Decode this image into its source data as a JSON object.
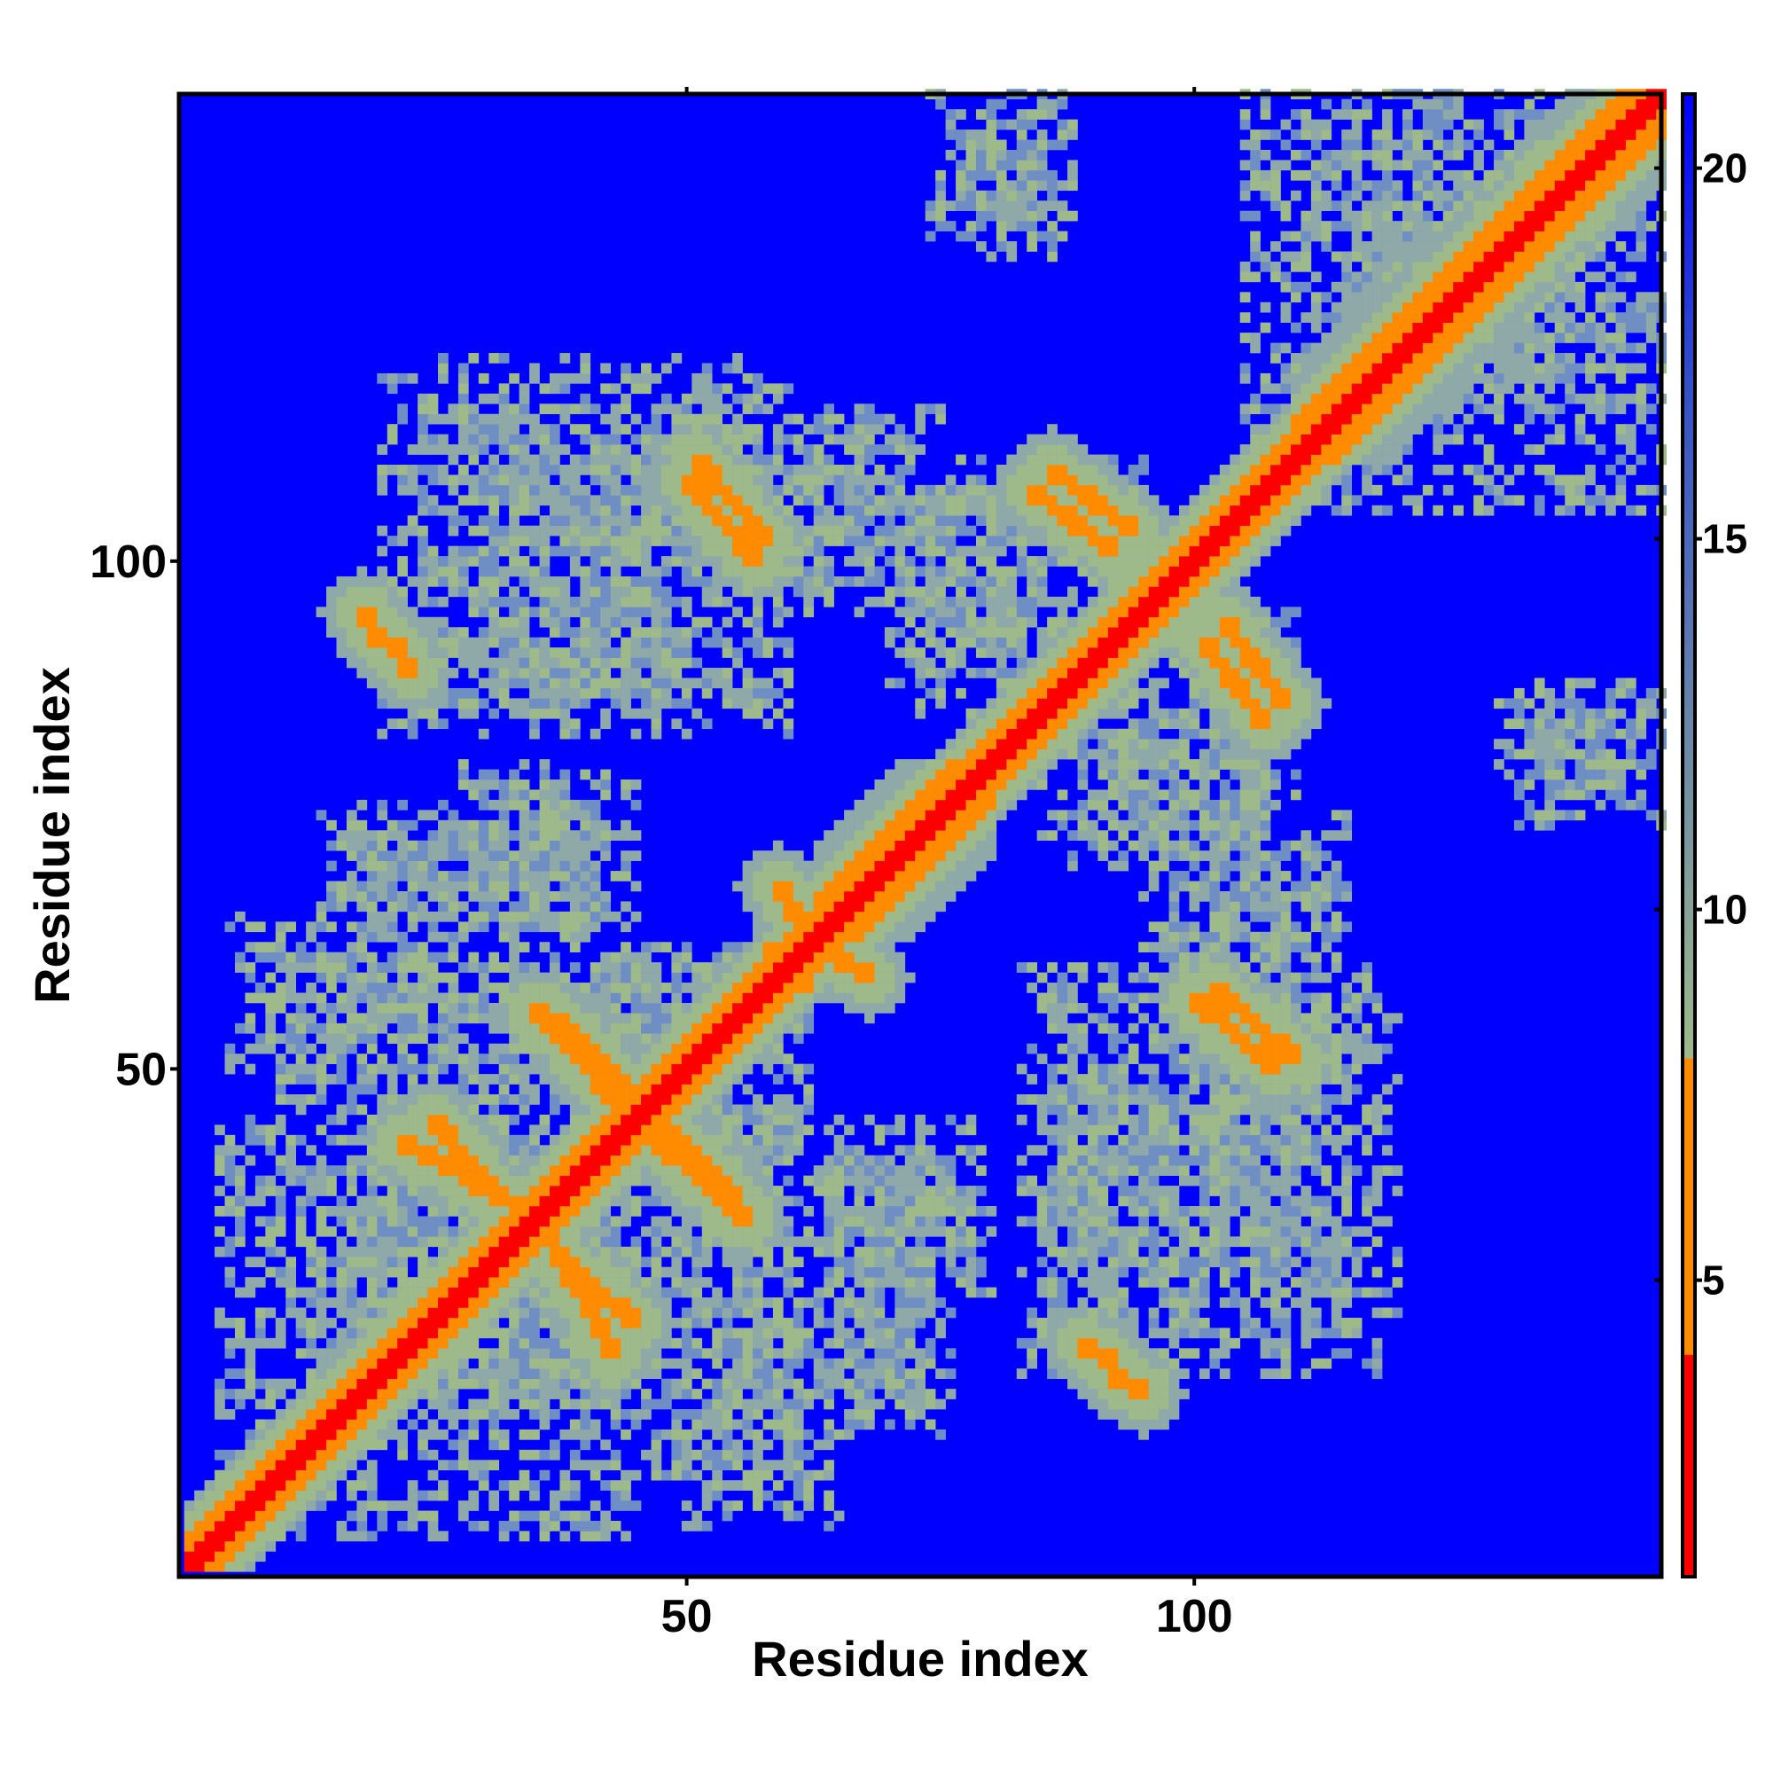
{
  "chart_data": {
    "type": "heatmap",
    "title": "",
    "xlabel": "Residue index",
    "ylabel": "Residue index",
    "n_residues": 146,
    "xlim": [
      1,
      146
    ],
    "ylim": [
      1,
      146
    ],
    "x_ticks": [
      50,
      100
    ],
    "y_ticks": [
      50,
      100
    ],
    "colorbar": {
      "range": [
        1,
        21
      ],
      "ticks": [
        5,
        10,
        15,
        20
      ],
      "cutoff": 8,
      "low_colors": [
        "#ff0000",
        "#ff8c00"
      ],
      "high_colors": [
        "#9eb98a",
        "#7f9ebf",
        "#4f6fb8",
        "#0000ff"
      ],
      "background_color": "#0000ff"
    },
    "diagonal_band": {
      "start": 1,
      "end": 146,
      "core_distance": 2.5,
      "orange_width": 4
    },
    "helix_blocks": [
      {
        "x": [
          58,
          62
        ],
        "y": [
          58,
          62
        ],
        "note": "wide diagonal"
      },
      {
        "x": [
          63,
          80
        ],
        "y": [
          63,
          80
        ]
      },
      {
        "x": [
          110,
          146
        ],
        "y": [
          110,
          146
        ]
      }
    ],
    "contact_segments": [
      {
        "from": [
          37,
          55
        ],
        "to": [
          44,
          48
        ]
      },
      {
        "from": [
          22,
          43
        ],
        "to": [
          34,
          36
        ]
      },
      {
        "from": [
          37,
          32
        ],
        "to": [
          45,
          25
        ]
      },
      {
        "from": [
          47,
          43
        ],
        "to": [
          56,
          35
        ]
      },
      {
        "from": [
          50,
          108
        ],
        "to": [
          57,
          100
        ]
      },
      {
        "from": [
          84,
          107
        ],
        "to": [
          92,
          101
        ]
      },
      {
        "from": [
          103,
          94
        ],
        "to": [
          109,
          86
        ]
      },
      {
        "from": [
          102,
          58
        ],
        "to": [
          110,
          51
        ]
      },
      {
        "from": [
          18,
          95
        ],
        "to": [
          20,
          92
        ]
      },
      {
        "from": [
          89,
          23
        ],
        "to": [
          92,
          21
        ]
      },
      {
        "from": [
          97,
          97
        ],
        "to": [
          101,
          101
        ]
      },
      {
        "from": [
          62,
          63
        ],
        "to": [
          68,
          59
        ]
      }
    ],
    "contact_clouds": [
      {
        "x": [
          20,
          60
        ],
        "y": [
          95,
          118
        ]
      },
      {
        "x": [
          20,
          60
        ],
        "y": [
          83,
          95
        ]
      },
      {
        "x": [
          55,
          95
        ],
        "y": [
          97,
          110
        ]
      },
      {
        "x": [
          74,
          88
        ],
        "y": [
          131,
          146
        ]
      },
      {
        "x": [
          105,
          146
        ],
        "y": [
          110,
          146
        ]
      },
      {
        "x": [
          130,
          146
        ],
        "y": [
          78,
          87
        ]
      },
      {
        "x": [
          85,
          108
        ],
        "y": [
          70,
          88
        ]
      },
      {
        "x": [
          95,
          115
        ],
        "y": [
          45,
          75
        ]
      },
      {
        "x": [
          85,
          120
        ],
        "y": [
          25,
          55
        ]
      },
      {
        "x": [
          60,
          80
        ],
        "y": [
          28,
          45
        ]
      },
      {
        "x": [
          20,
          60
        ],
        "y": [
          47,
          62
        ]
      },
      {
        "x": [
          4,
          55
        ],
        "y": [
          10,
          45
        ]
      },
      {
        "x": [
          18,
          45
        ],
        "y": [
          64,
          76
        ]
      },
      {
        "x": [
          50,
          65
        ],
        "y": [
          5,
          30
        ]
      },
      {
        "x": [
          63,
          75
        ],
        "y": [
          14,
          25
        ]
      }
    ]
  }
}
